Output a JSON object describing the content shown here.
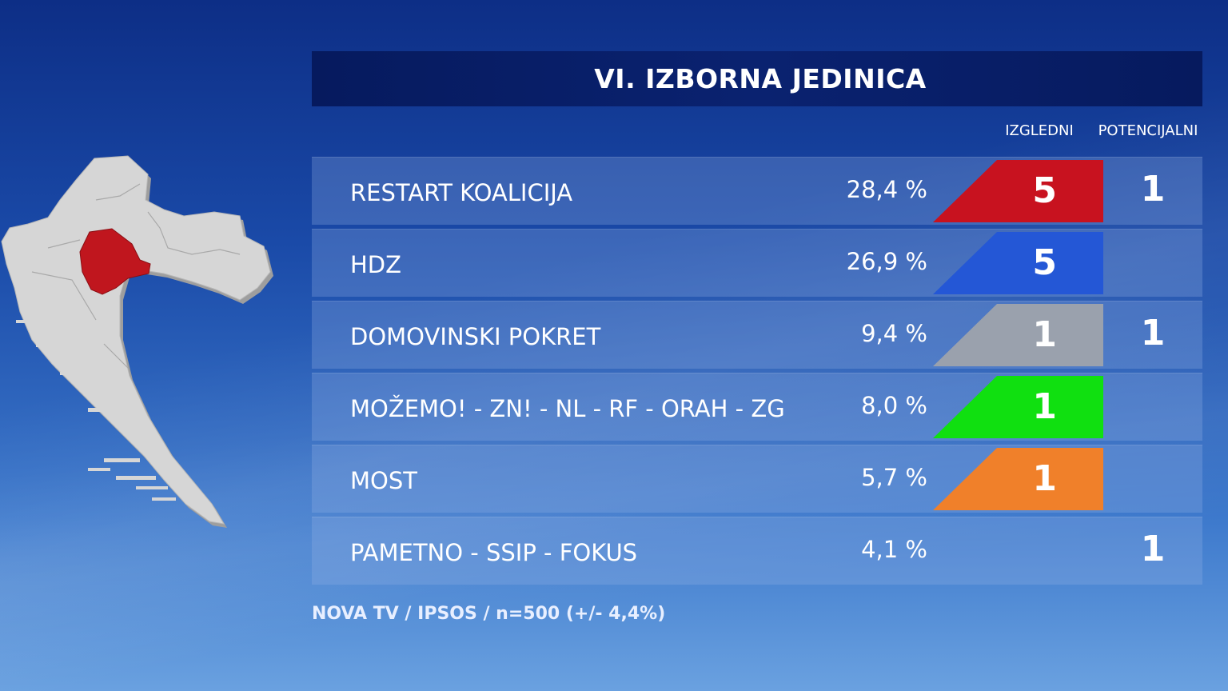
{
  "title": "VI. IZBORNA JEDINICA",
  "columns": {
    "likely": "IZGLEDNI",
    "potential": "POTENCIJALNI"
  },
  "chart_data": {
    "type": "table",
    "rows": [
      {
        "party": "RESTART KOALICIJA",
        "percent": "28,4 %",
        "likely": "5",
        "potential": "1",
        "color": "#c8121f"
      },
      {
        "party": "HDZ",
        "percent": "26,9 %",
        "likely": "5",
        "potential": "",
        "color": "#2457d6"
      },
      {
        "party": "DOMOVINSKI POKRET",
        "percent": "9,4 %",
        "likely": "1",
        "potential": "1",
        "color": "#9aa1ad"
      },
      {
        "party": "MOŽEMO! - ZN! - NL - RF - ORAH - ZG",
        "percent": "8,0 %",
        "likely": "1",
        "potential": "",
        "color": "#10e010"
      },
      {
        "party": "MOST",
        "percent": "5,7 %",
        "likely": "1",
        "potential": "",
        "color": "#f0802a"
      },
      {
        "party": "PAMETNO - SSIP - FOKUS",
        "percent": "4,1 %",
        "likely": "",
        "potential": "1",
        "color": ""
      }
    ]
  },
  "source": "NOVA TV / IPSOS / n=500 (+/- 4,4%)",
  "colors": {
    "map_land": "#d6d6d6",
    "map_highlight": "#c0161e",
    "title_bar": "#0a2270"
  }
}
